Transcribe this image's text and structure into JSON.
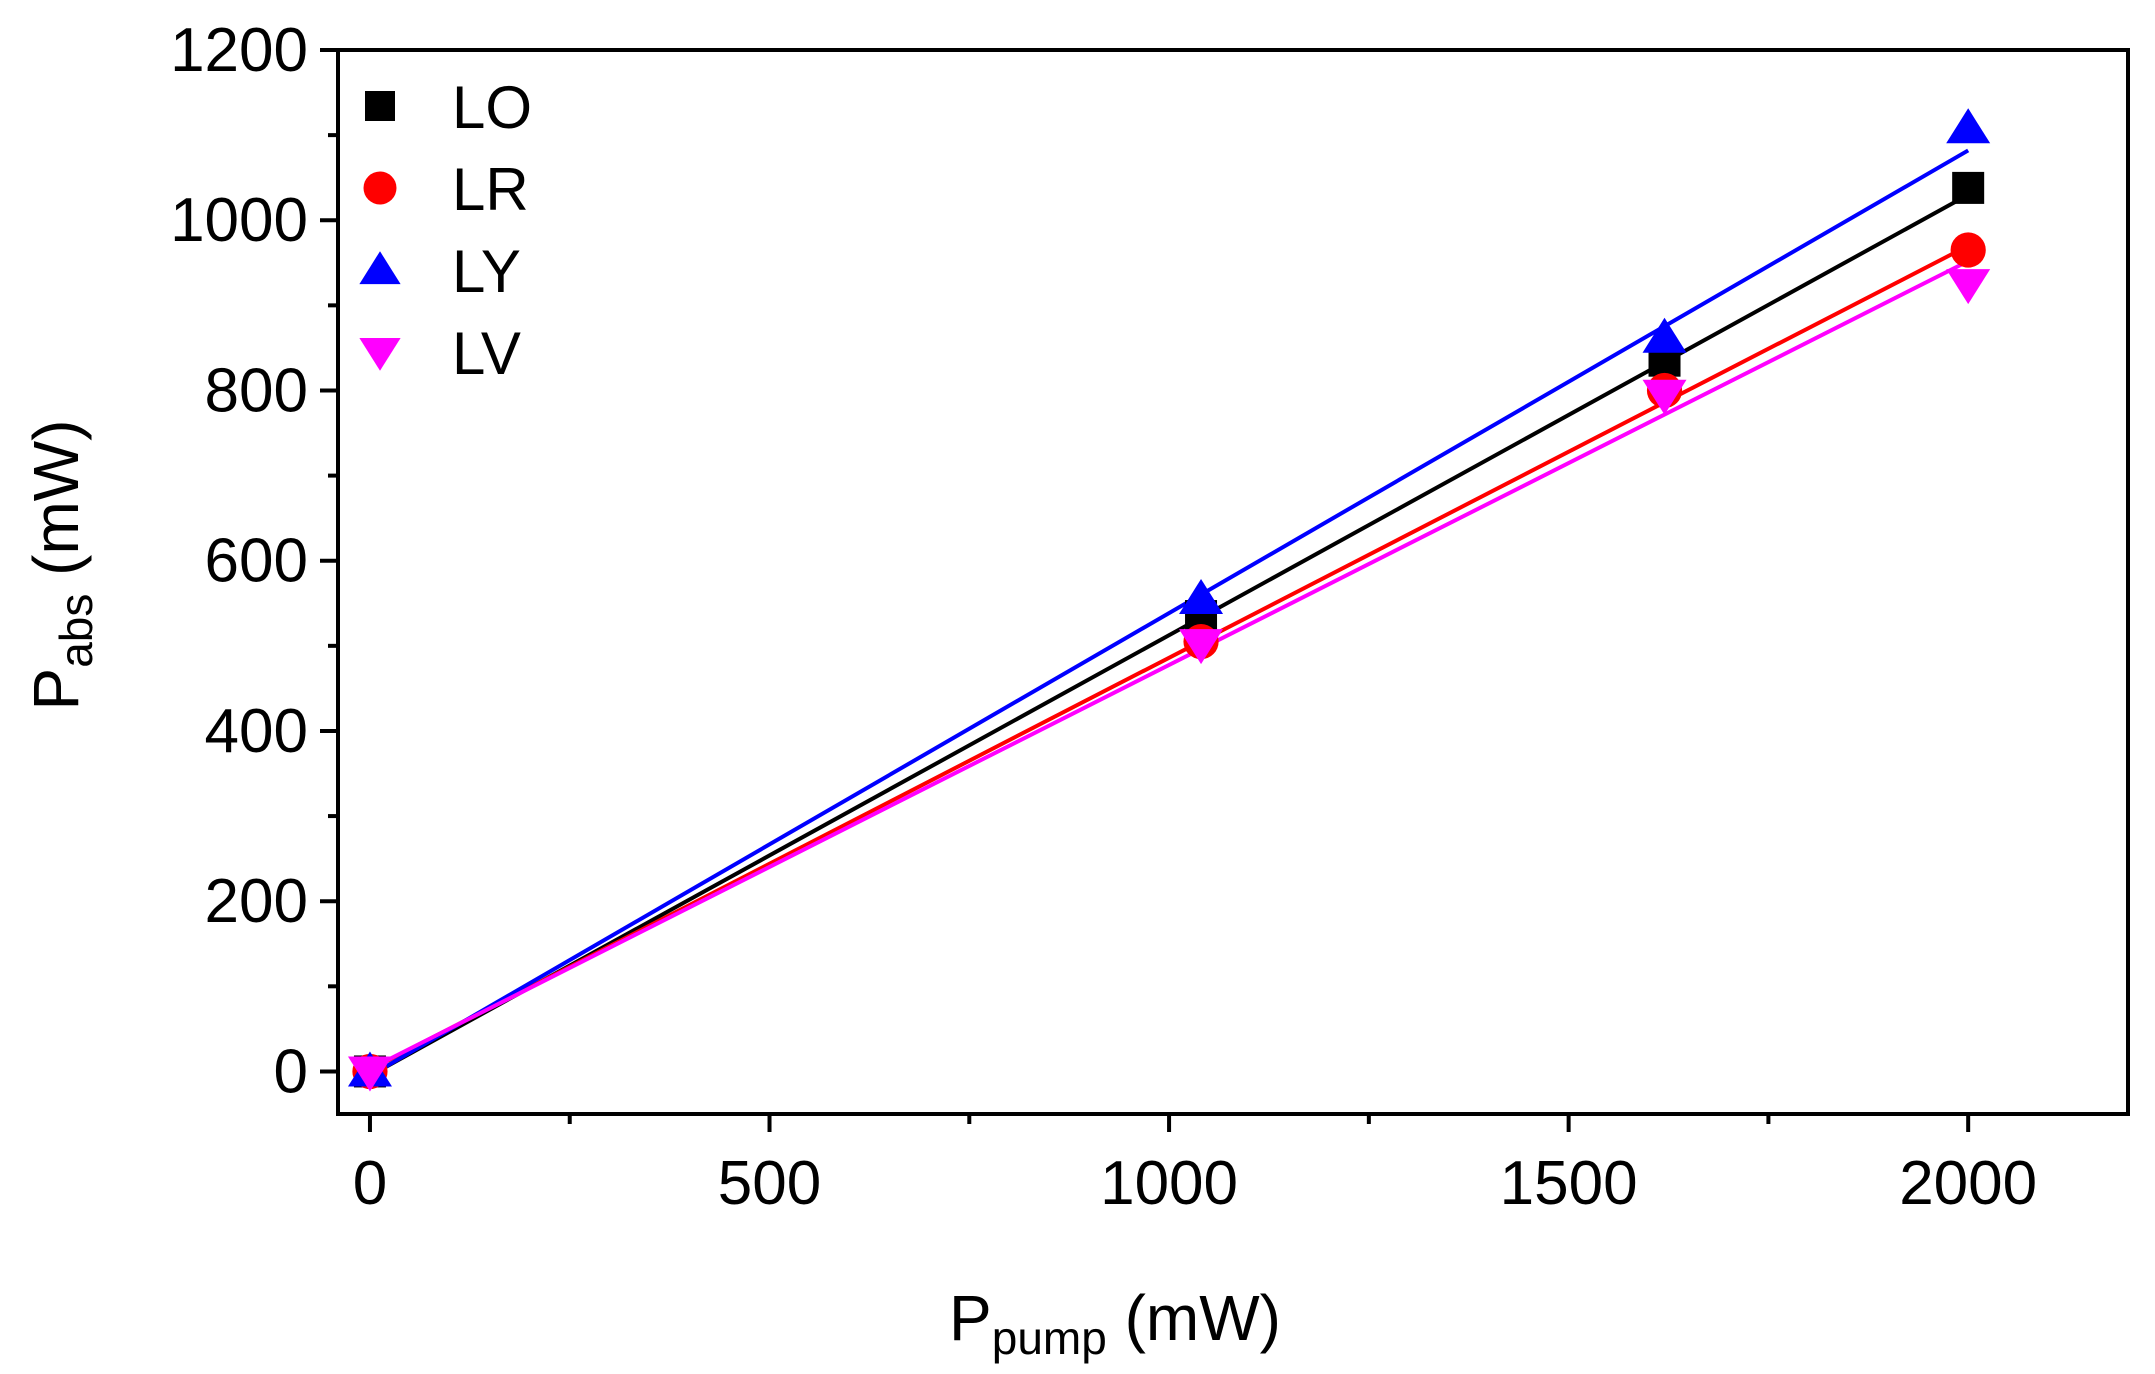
{
  "chart_data": {
    "type": "scatter",
    "title": "",
    "xlabel": {
      "main": "P",
      "sub": "pump",
      "unit": " (mW)"
    },
    "ylabel": {
      "main": "P",
      "sub": "abs",
      "unit": " (mW)"
    },
    "xlim": [
      -40,
      2200
    ],
    "ylim": [
      -50,
      1200
    ],
    "xticks": [
      0,
      500,
      1000,
      1500,
      2000
    ],
    "yticks": [
      0,
      200,
      400,
      600,
      800,
      1000,
      1200
    ],
    "xticks_minor": [
      250,
      750,
      1250,
      1750
    ],
    "yticks_minor": [
      100,
      300,
      500,
      700,
      900,
      1100
    ],
    "grid": false,
    "legend_position": "top-left",
    "series": [
      {
        "name": "LO",
        "marker": "square",
        "color": "#000000",
        "x": [
          0,
          1040,
          1620,
          2000
        ],
        "y": [
          0,
          535,
          835,
          1038
        ],
        "fit": {
          "x": [
            0,
            2000
          ],
          "y": [
            -5,
            1030
          ]
        }
      },
      {
        "name": "LR",
        "marker": "circle",
        "color": "#ff0000",
        "x": [
          0,
          1040,
          1620,
          2000
        ],
        "y": [
          0,
          505,
          800,
          965
        ],
        "fit": {
          "x": [
            0,
            2000
          ],
          "y": [
            2,
            970
          ]
        }
      },
      {
        "name": "LY",
        "marker": "triangle-up",
        "color": "#0000ff",
        "x": [
          0,
          1040,
          1620,
          2000
        ],
        "y": [
          0,
          555,
          862,
          1108
        ],
        "fit": {
          "x": [
            0,
            2000
          ],
          "y": [
            -5,
            1082
          ]
        }
      },
      {
        "name": "LV",
        "marker": "triangle-down",
        "color": "#ff00ff",
        "x": [
          0,
          1040,
          1620,
          2000
        ],
        "y": [
          0,
          502,
          795,
          925
        ],
        "fit": {
          "x": [
            0,
            2000
          ],
          "y": [
            3,
            952
          ]
        }
      }
    ]
  }
}
